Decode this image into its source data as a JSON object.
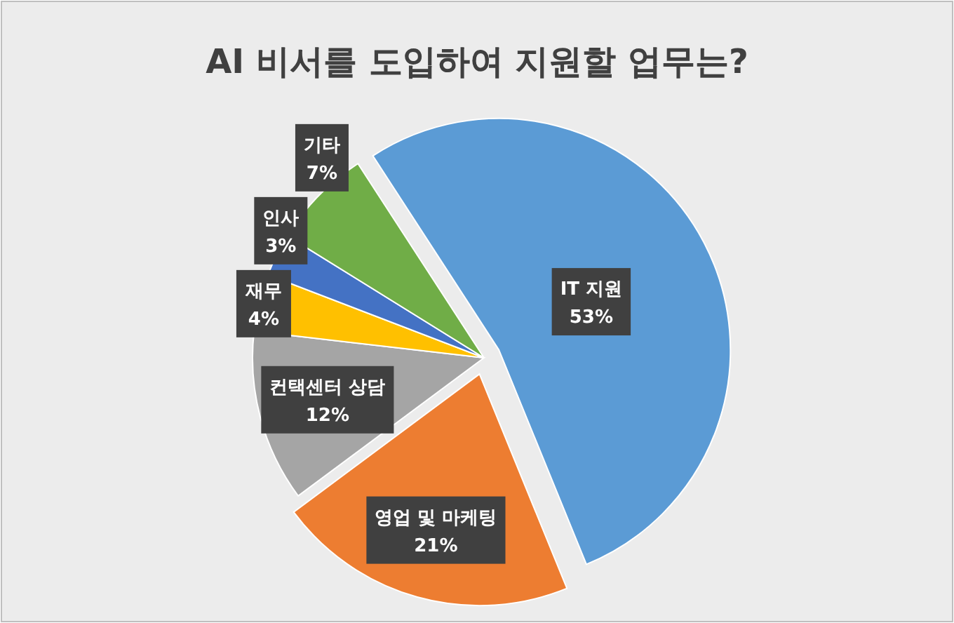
{
  "chart_data": {
    "type": "pie",
    "title": "AI 비서를 도입하여 지원할 업무는?",
    "categories": [
      "IT 지원",
      "영업 및 마케팅",
      "컨택센터 상담",
      "재무",
      "인사",
      "기타"
    ],
    "values": [
      53,
      21,
      12,
      4,
      3,
      7
    ],
    "value_labels": [
      "53%",
      "21%",
      "12%",
      "4%",
      "3%",
      "7%"
    ],
    "colors": [
      "#5b9bd5",
      "#ed7d31",
      "#a5a5a5",
      "#ffc000",
      "#4472c4",
      "#70ad47"
    ]
  }
}
